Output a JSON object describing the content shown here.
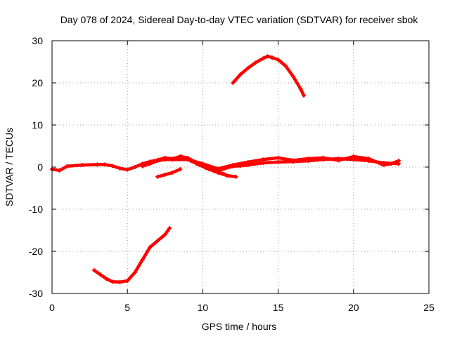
{
  "chart_data": {
    "type": "scatter",
    "title": "Day 078 of 2024, Sidereal Day-to-day VTEC variation (SDTVAR) for receiver sbok",
    "xlabel": "GPS time / hours",
    "ylabel": "SDTVAR / TECUs",
    "xlim": [
      0,
      25
    ],
    "ylim": [
      -30,
      30
    ],
    "xticks": [
      0,
      5,
      10,
      15,
      20,
      25
    ],
    "yticks": [
      -30,
      -20,
      -10,
      0,
      10,
      20,
      30
    ],
    "grid": true,
    "series_color": "#ff0000",
    "series": [
      {
        "name": "main-band-a",
        "points": [
          [
            0,
            -0.5
          ],
          [
            0.5,
            -0.8
          ],
          [
            1,
            0.2
          ],
          [
            2,
            0.5
          ],
          [
            3,
            0.6
          ],
          [
            3.5,
            0.6
          ],
          [
            4,
            0.3
          ],
          [
            4.5,
            -0.3
          ],
          [
            5,
            -0.6
          ],
          [
            5.5,
            0
          ],
          [
            6,
            0.8
          ],
          [
            6.5,
            1.3
          ],
          [
            7,
            1.7
          ],
          [
            7.5,
            2.2
          ],
          [
            8,
            2.0
          ],
          [
            8.5,
            2.5
          ],
          [
            9,
            2.2
          ],
          [
            9.5,
            1.2
          ],
          [
            10,
            0.3
          ],
          [
            10.5,
            -0.5
          ],
          [
            11,
            -0.8
          ],
          [
            11.5,
            -0.3
          ],
          [
            12,
            0.2
          ],
          [
            12.5,
            0.3
          ],
          [
            13,
            0.5
          ],
          [
            14,
            1.0
          ],
          [
            15,
            1.2
          ],
          [
            16,
            1.3
          ],
          [
            17,
            1.5
          ],
          [
            18,
            1.8
          ],
          [
            19,
            2.0
          ],
          [
            20,
            1.8
          ],
          [
            21,
            1.5
          ],
          [
            22,
            1.0
          ],
          [
            23,
            0.8
          ]
        ]
      },
      {
        "name": "main-band-b",
        "points": [
          [
            6,
            0.2
          ],
          [
            6.5,
            0.8
          ],
          [
            7,
            1.5
          ],
          [
            7.5,
            1.8
          ],
          [
            8,
            1.8
          ],
          [
            9,
            1.8
          ],
          [
            10,
            0.8
          ],
          [
            11,
            -0.4
          ],
          [
            12,
            0.5
          ],
          [
            13,
            1.2
          ],
          [
            14,
            1.8
          ],
          [
            15,
            2.2
          ],
          [
            16,
            1.6
          ],
          [
            17,
            2.0
          ],
          [
            18,
            2.2
          ],
          [
            19,
            1.6
          ],
          [
            20,
            2.5
          ],
          [
            21,
            2.0
          ],
          [
            22,
            0.5
          ],
          [
            22.5,
            0.8
          ],
          [
            23,
            1.5
          ]
        ]
      },
      {
        "name": "diagonal-a",
        "points": [
          [
            8.6,
            2.5
          ],
          [
            9.2,
            1.5
          ],
          [
            9.8,
            0.5
          ],
          [
            10.4,
            -0.5
          ],
          [
            11,
            -1.3
          ],
          [
            11.6,
            -2.0
          ],
          [
            12.2,
            -2.3
          ]
        ]
      },
      {
        "name": "diagonal-b",
        "points": [
          [
            9,
            2.0
          ],
          [
            9.6,
            0.8
          ],
          [
            10.2,
            -0.2
          ],
          [
            10.8,
            -1.0
          ],
          [
            11.4,
            -1.6
          ]
        ]
      },
      {
        "name": "lower-segment",
        "points": [
          [
            7,
            -2.3
          ],
          [
            7.5,
            -1.8
          ],
          [
            8,
            -1.3
          ],
          [
            8.5,
            -0.5
          ]
        ]
      },
      {
        "name": "upper-arc",
        "points": [
          [
            12,
            20
          ],
          [
            12.5,
            22
          ],
          [
            13,
            23.5
          ],
          [
            13.5,
            24.8
          ],
          [
            14,
            25.8
          ],
          [
            14.3,
            26.3
          ],
          [
            14.6,
            26
          ],
          [
            15,
            25.5
          ],
          [
            15.5,
            24
          ],
          [
            16,
            21.5
          ],
          [
            16.5,
            18.5
          ],
          [
            16.7,
            17
          ]
        ]
      },
      {
        "name": "lower-arc",
        "points": [
          [
            2.8,
            -24.5
          ],
          [
            3.2,
            -25.5
          ],
          [
            3.6,
            -26.5
          ],
          [
            4,
            -27.2
          ],
          [
            4.5,
            -27.3
          ],
          [
            5,
            -27
          ],
          [
            5.5,
            -25
          ],
          [
            6,
            -22
          ],
          [
            6.5,
            -19
          ],
          [
            7,
            -17.5
          ],
          [
            7.5,
            -16
          ],
          [
            7.8,
            -14.5
          ]
        ]
      }
    ]
  }
}
